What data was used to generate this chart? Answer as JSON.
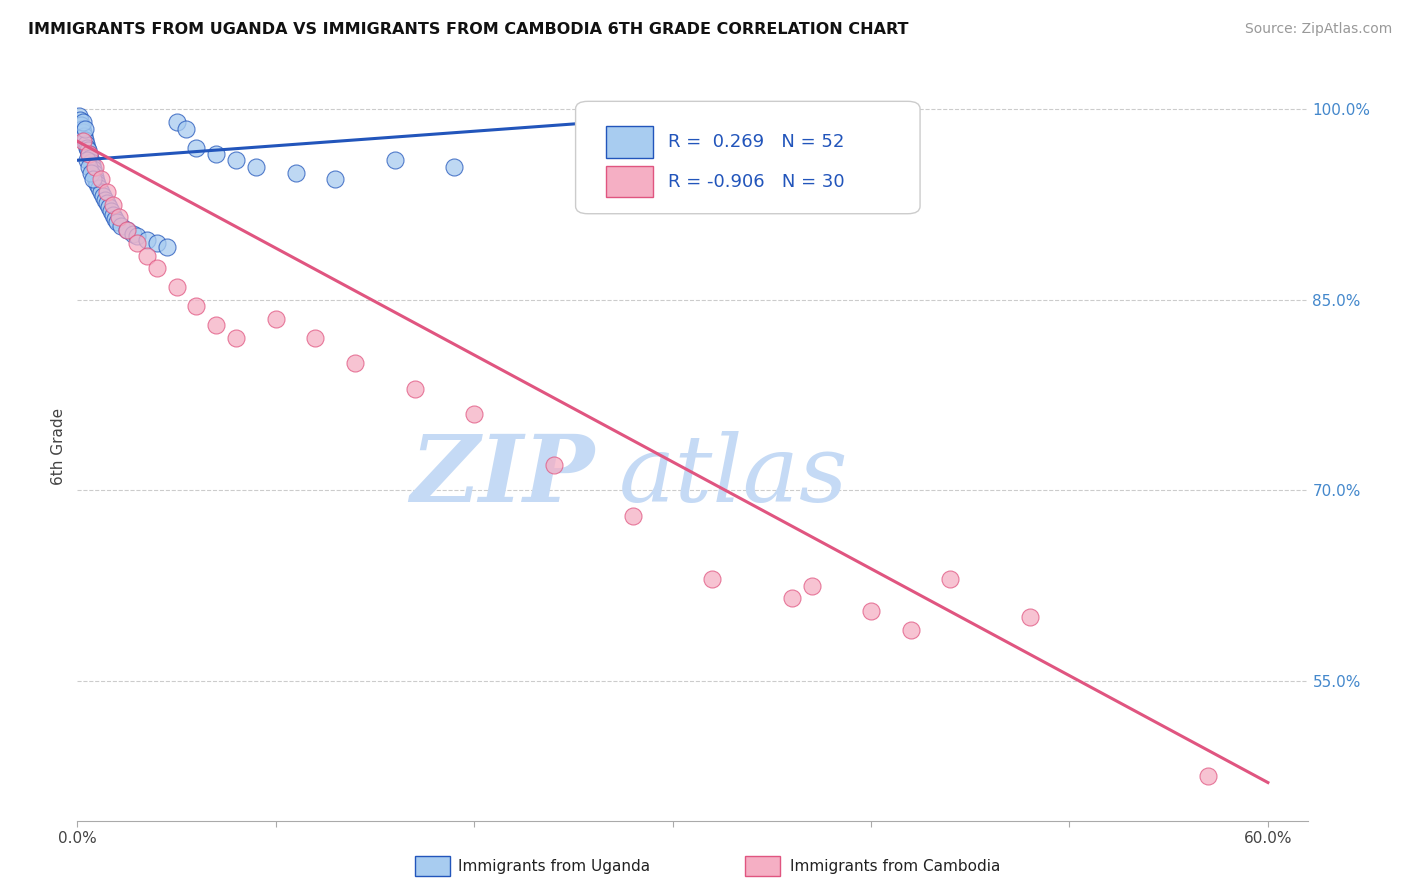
{
  "title": "IMMIGRANTS FROM UGANDA VS IMMIGRANTS FROM CAMBODIA 6TH GRADE CORRELATION CHART",
  "source": "Source: ZipAtlas.com",
  "ylabel": "6th Grade",
  "xlim": [
    0.0,
    62.0
  ],
  "ylim": [
    44.0,
    103.0
  ],
  "yticks": [
    55.0,
    70.0,
    85.0,
    100.0
  ],
  "ytick_labels": [
    "55.0%",
    "70.0%",
    "85.0%",
    "100.0%"
  ],
  "xtick_positions": [
    0,
    10,
    20,
    30,
    40,
    50,
    60
  ],
  "xtick_labels": [
    "0.0%",
    "",
    "",
    "",
    "",
    "",
    "60.0%"
  ],
  "legend_r_uganda": "0.269",
  "legend_n_uganda": "52",
  "legend_r_cambodia": "-0.906",
  "legend_n_cambodia": "30",
  "color_uganda": "#a8ccf0",
  "color_cambodia": "#f5afc4",
  "line_color_uganda": "#2255bb",
  "line_color_cambodia": "#e05580",
  "watermark_zip_color": "#c5daf5",
  "watermark_atlas_color": "#c5daf5",
  "uganda_x": [
    0.1,
    0.15,
    0.2,
    0.25,
    0.3,
    0.35,
    0.4,
    0.45,
    0.5,
    0.55,
    0.6,
    0.65,
    0.7,
    0.75,
    0.8,
    0.85,
    0.9,
    0.95,
    1.0,
    1.1,
    1.2,
    1.3,
    1.4,
    1.5,
    1.6,
    1.7,
    1.8,
    1.9,
    2.0,
    2.2,
    2.5,
    2.8,
    3.0,
    3.5,
    4.0,
    4.5,
    5.0,
    5.5,
    6.0,
    7.0,
    8.0,
    9.0,
    11.0,
    13.0,
    16.0,
    19.0,
    0.3,
    0.4,
    0.5,
    0.6,
    0.7,
    0.8
  ],
  "uganda_y": [
    99.5,
    99.2,
    98.8,
    98.5,
    98.2,
    97.9,
    97.6,
    97.3,
    97.0,
    96.8,
    96.5,
    96.2,
    95.9,
    95.6,
    95.3,
    95.0,
    94.7,
    94.4,
    94.1,
    93.8,
    93.5,
    93.2,
    92.9,
    92.6,
    92.3,
    92.0,
    91.7,
    91.4,
    91.1,
    90.8,
    90.5,
    90.2,
    90.0,
    89.7,
    89.5,
    89.2,
    99.0,
    98.5,
    97.0,
    96.5,
    96.0,
    95.5,
    95.0,
    94.5,
    96.0,
    95.5,
    99.0,
    98.5,
    96.0,
    95.5,
    95.0,
    94.5
  ],
  "cambodia_x": [
    0.3,
    0.6,
    0.9,
    1.2,
    1.5,
    1.8,
    2.1,
    2.5,
    3.0,
    3.5,
    4.0,
    5.0,
    6.0,
    7.0,
    8.0,
    10.0,
    12.0,
    14.0,
    17.0,
    20.0,
    24.0,
    28.0,
    32.0,
    36.0,
    37.0,
    40.0,
    42.0,
    44.0,
    48.0,
    57.0
  ],
  "cambodia_y": [
    97.5,
    96.5,
    95.5,
    94.5,
    93.5,
    92.5,
    91.5,
    90.5,
    89.5,
    88.5,
    87.5,
    86.0,
    84.5,
    83.0,
    82.0,
    83.5,
    82.0,
    80.0,
    78.0,
    76.0,
    72.0,
    68.0,
    63.0,
    61.5,
    62.5,
    60.5,
    59.0,
    63.0,
    60.0,
    47.5
  ]
}
